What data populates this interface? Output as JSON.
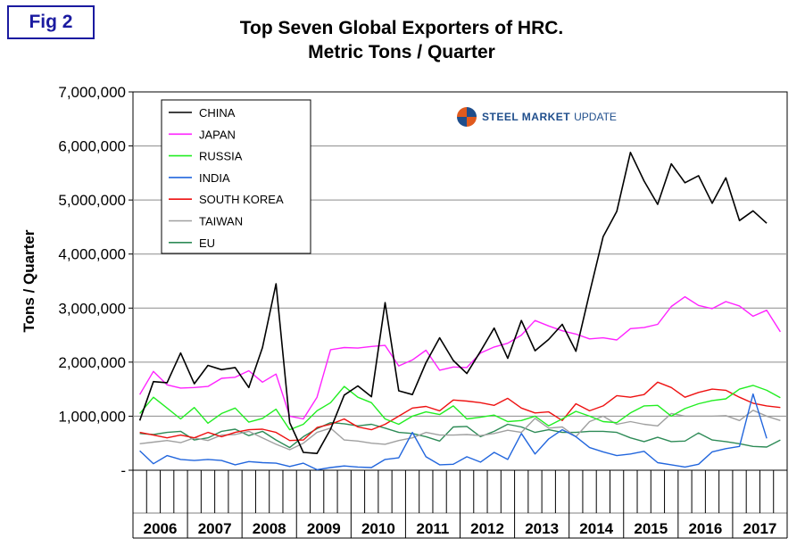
{
  "figure_label": "Fig 2",
  "logo": {
    "bold": "STEEL MARKET",
    "light": "UPDATE"
  },
  "chart_data": {
    "type": "line",
    "title": [
      "Top Seven Global Exporters of HRC.",
      "Metric Tons / Quarter"
    ],
    "ylabel": "Tons / Quarter",
    "xlabel": "",
    "ylim": [
      0,
      7000000
    ],
    "yticks": [
      0,
      1000000,
      2000000,
      3000000,
      4000000,
      5000000,
      6000000,
      7000000
    ],
    "ytick_labels": [
      "-",
      "1,000,000",
      "2,000,000",
      "3,000,000",
      "4,000,000",
      "5,000,000",
      "6,000,000",
      "7,000,000"
    ],
    "years": [
      "2006",
      "2007",
      "2008",
      "2009",
      "2010",
      "2011",
      "2012",
      "2013",
      "2014",
      "2015",
      "2016",
      "2017"
    ],
    "quarters_total": 48,
    "grid": "horizontal",
    "legend_position": "top-left",
    "series": [
      {
        "name": "CHINA",
        "color": "#000000",
        "values": [
          920000,
          1640000,
          1620000,
          2170000,
          1600000,
          1940000,
          1860000,
          1900000,
          1530000,
          2270000,
          3450000,
          880000,
          330000,
          310000,
          760000,
          1390000,
          1560000,
          1360000,
          3100000,
          1470000,
          1400000,
          1990000,
          2450000,
          2030000,
          1790000,
          2200000,
          2630000,
          2070000,
          2770000,
          2210000,
          2420000,
          2700000,
          2200000,
          3280000,
          4320000,
          4790000,
          5880000,
          5350000,
          4920000,
          5670000,
          5320000,
          5450000,
          4940000,
          5410000,
          4620000,
          4800000,
          4570000
        ]
      },
      {
        "name": "JAPAN",
        "color": "#ff22ff",
        "values": [
          1400000,
          1830000,
          1580000,
          1520000,
          1530000,
          1550000,
          1700000,
          1720000,
          1840000,
          1630000,
          1780000,
          1000000,
          950000,
          1350000,
          2230000,
          2270000,
          2260000,
          2290000,
          2310000,
          1930000,
          2040000,
          2220000,
          1850000,
          1910000,
          1900000,
          2170000,
          2280000,
          2350000,
          2500000,
          2770000,
          2670000,
          2580000,
          2520000,
          2430000,
          2450000,
          2410000,
          2620000,
          2640000,
          2700000,
          3030000,
          3210000,
          3050000,
          2990000,
          3120000,
          3040000,
          2850000,
          2960000,
          2560000
        ]
      },
      {
        "name": "RUSSIA",
        "color": "#22ee22",
        "values": [
          1050000,
          1350000,
          1150000,
          950000,
          1160000,
          870000,
          1050000,
          1150000,
          890000,
          960000,
          1130000,
          750000,
          850000,
          1100000,
          1250000,
          1550000,
          1350000,
          1250000,
          950000,
          850000,
          1000000,
          1080000,
          1030000,
          1190000,
          950000,
          980000,
          1020000,
          900000,
          920000,
          1000000,
          820000,
          950000,
          1090000,
          1000000,
          900000,
          880000,
          1060000,
          1190000,
          1200000,
          1000000,
          1140000,
          1230000,
          1290000,
          1320000,
          1500000,
          1570000,
          1480000,
          1340000
        ]
      },
      {
        "name": "INDIA",
        "color": "#2266dd",
        "values": [
          360000,
          120000,
          270000,
          200000,
          180000,
          200000,
          180000,
          100000,
          160000,
          140000,
          130000,
          70000,
          130000,
          10000,
          50000,
          80000,
          60000,
          50000,
          200000,
          230000,
          700000,
          250000,
          100000,
          110000,
          250000,
          150000,
          330000,
          200000,
          680000,
          300000,
          580000,
          750000,
          620000,
          420000,
          340000,
          270000,
          300000,
          350000,
          140000,
          100000,
          60000,
          110000,
          340000,
          400000,
          440000,
          1410000,
          590000
        ]
      },
      {
        "name": "SOUTH KOREA",
        "color": "#ee1111",
        "values": [
          700000,
          650000,
          600000,
          650000,
          600000,
          700000,
          620000,
          700000,
          750000,
          760000,
          700000,
          550000,
          560000,
          790000,
          850000,
          950000,
          800000,
          750000,
          850000,
          1000000,
          1150000,
          1180000,
          1100000,
          1300000,
          1280000,
          1250000,
          1200000,
          1330000,
          1150000,
          1060000,
          1080000,
          920000,
          1230000,
          1100000,
          1190000,
          1380000,
          1350000,
          1400000,
          1630000,
          1530000,
          1350000,
          1440000,
          1500000,
          1480000,
          1350000,
          1240000,
          1190000,
          1160000
        ]
      },
      {
        "name": "TAIWAN",
        "color": "#a0a0a0",
        "values": [
          490000,
          520000,
          550000,
          510000,
          600000,
          550000,
          650000,
          660000,
          720000,
          600000,
          480000,
          380000,
          500000,
          700000,
          780000,
          560000,
          540000,
          500000,
          480000,
          550000,
          600000,
          700000,
          650000,
          650000,
          660000,
          640000,
          680000,
          740000,
          700000,
          960000,
          780000,
          800000,
          620000,
          900000,
          1000000,
          850000,
          900000,
          850000,
          820000,
          1050000,
          1000000,
          1000000,
          1000000,
          1010000,
          920000,
          1110000,
          1000000,
          920000
        ]
      },
      {
        "name": "EU",
        "color": "#2e8b57",
        "values": [
          680000,
          660000,
          700000,
          720000,
          560000,
          600000,
          720000,
          760000,
          640000,
          720000,
          560000,
          420000,
          620000,
          770000,
          880000,
          860000,
          820000,
          850000,
          780000,
          700000,
          680000,
          620000,
          540000,
          800000,
          810000,
          620000,
          720000,
          850000,
          800000,
          700000,
          750000,
          700000,
          700000,
          720000,
          720000,
          700000,
          600000,
          530000,
          610000,
          530000,
          540000,
          690000,
          560000,
          530000,
          490000,
          440000,
          430000,
          560000
        ]
      }
    ]
  }
}
